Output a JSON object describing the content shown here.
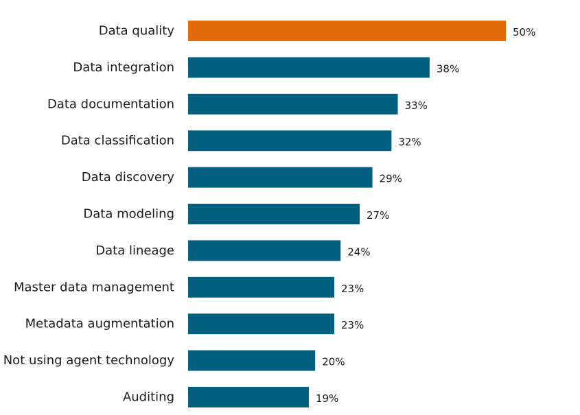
{
  "chart_data": {
    "type": "bar",
    "orientation": "horizontal",
    "title": "",
    "xlabel": "",
    "ylabel": "",
    "xlim": [
      0,
      50
    ],
    "grid": false,
    "legend": "none",
    "categories": [
      "Data quality",
      "Data integration",
      "Data documentation",
      "Data classification",
      "Data discovery",
      "Data modeling",
      "Data lineage",
      "Master data management",
      "Metadata augmentation",
      "Not using agent technology",
      "Auditing"
    ],
    "values": [
      50,
      38,
      33,
      32,
      29,
      27,
      24,
      23,
      23,
      20,
      19
    ],
    "value_labels": [
      "50%",
      "38%",
      "33%",
      "32%",
      "29%",
      "27%",
      "24%",
      "23%",
      "23%",
      "20%",
      "19%"
    ],
    "highlight_index": 0,
    "colors": {
      "highlight": "#E36C0A",
      "bar": "#005F7F"
    }
  }
}
